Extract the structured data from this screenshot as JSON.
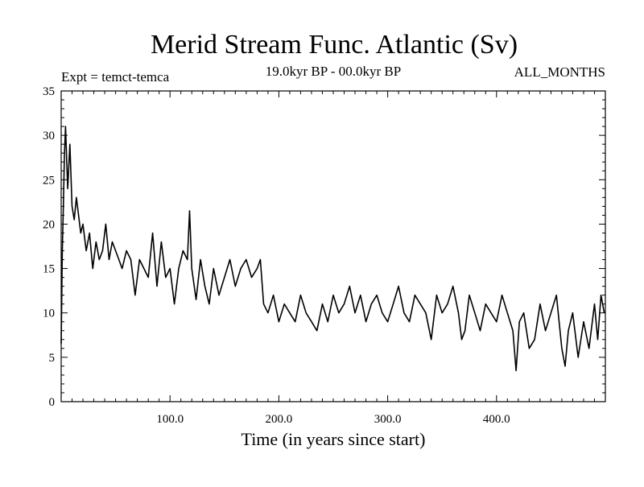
{
  "chart_data": {
    "type": "line",
    "title": "Merid Stream Func. Atlantic (Sv)",
    "subtitle_left": "Expt = temct-temca",
    "subtitle_center": "19.0kyr BP - 00.0kyr BP",
    "subtitle_right": "ALL_MONTHS",
    "xlabel": "Time (in years since start)",
    "ylabel": "",
    "xlim": [
      0,
      500
    ],
    "ylim": [
      0,
      35
    ],
    "xticks": [
      100,
      200,
      300,
      400
    ],
    "xtick_labels": [
      "100.0",
      "200.0",
      "300.0",
      "400.0"
    ],
    "yticks": [
      0,
      5,
      10,
      15,
      20,
      25,
      30,
      35
    ],
    "ytick_labels": [
      "0",
      "5",
      "10",
      "15",
      "20",
      "25",
      "30",
      "35"
    ],
    "grid": false,
    "series": [
      {
        "name": "temct-temca",
        "color": "#000000",
        "x": [
          0,
          1,
          2,
          3,
          4,
          6,
          8,
          10,
          12,
          14,
          16,
          18,
          20,
          23,
          26,
          29,
          32,
          35,
          38,
          41,
          44,
          47,
          50,
          53,
          56,
          60,
          64,
          68,
          72,
          76,
          80,
          84,
          88,
          92,
          96,
          100,
          104,
          108,
          112,
          116,
          118,
          120,
          124,
          128,
          132,
          136,
          140,
          145,
          150,
          155,
          160,
          165,
          170,
          175,
          180,
          183,
          186,
          190,
          195,
          200,
          205,
          210,
          215,
          220,
          225,
          230,
          235,
          240,
          245,
          250,
          255,
          260,
          265,
          270,
          275,
          280,
          285,
          290,
          295,
          300,
          305,
          310,
          315,
          320,
          325,
          330,
          335,
          340,
          345,
          350,
          355,
          360,
          365,
          368,
          371,
          375,
          380,
          385,
          390,
          395,
          400,
          405,
          410,
          415,
          418,
          421,
          425,
          430,
          435,
          440,
          445,
          450,
          455,
          460,
          463,
          466,
          470,
          475,
          480,
          485,
          490,
          493,
          496,
          499
        ],
        "values": [
          6.5,
          17,
          22,
          28,
          31,
          24,
          29,
          22,
          20.5,
          23,
          21,
          19,
          20,
          17,
          19,
          15,
          18,
          16,
          17,
          20,
          16,
          18,
          17,
          16,
          15,
          17,
          16,
          12,
          16,
          15,
          14,
          19,
          13,
          18,
          14,
          15,
          11,
          15,
          17,
          16,
          21.5,
          15,
          11.5,
          16,
          13,
          11,
          15,
          12,
          14,
          16,
          13,
          15,
          16,
          14,
          15,
          16,
          11,
          10,
          12,
          9,
          11,
          10,
          9,
          12,
          10,
          9,
          8,
          11,
          9,
          12,
          10,
          11,
          13,
          10,
          12,
          9,
          11,
          12,
          10,
          9,
          11,
          13,
          10,
          9,
          12,
          11,
          10,
          7,
          12,
          10,
          11,
          13,
          10,
          7,
          8,
          12,
          10,
          8,
          11,
          10,
          9,
          12,
          10,
          8,
          3.5,
          9,
          10,
          6,
          7,
          11,
          8,
          10,
          12,
          6,
          4,
          8,
          10,
          5,
          9,
          6,
          11,
          7,
          12,
          10
        ]
      }
    ]
  }
}
